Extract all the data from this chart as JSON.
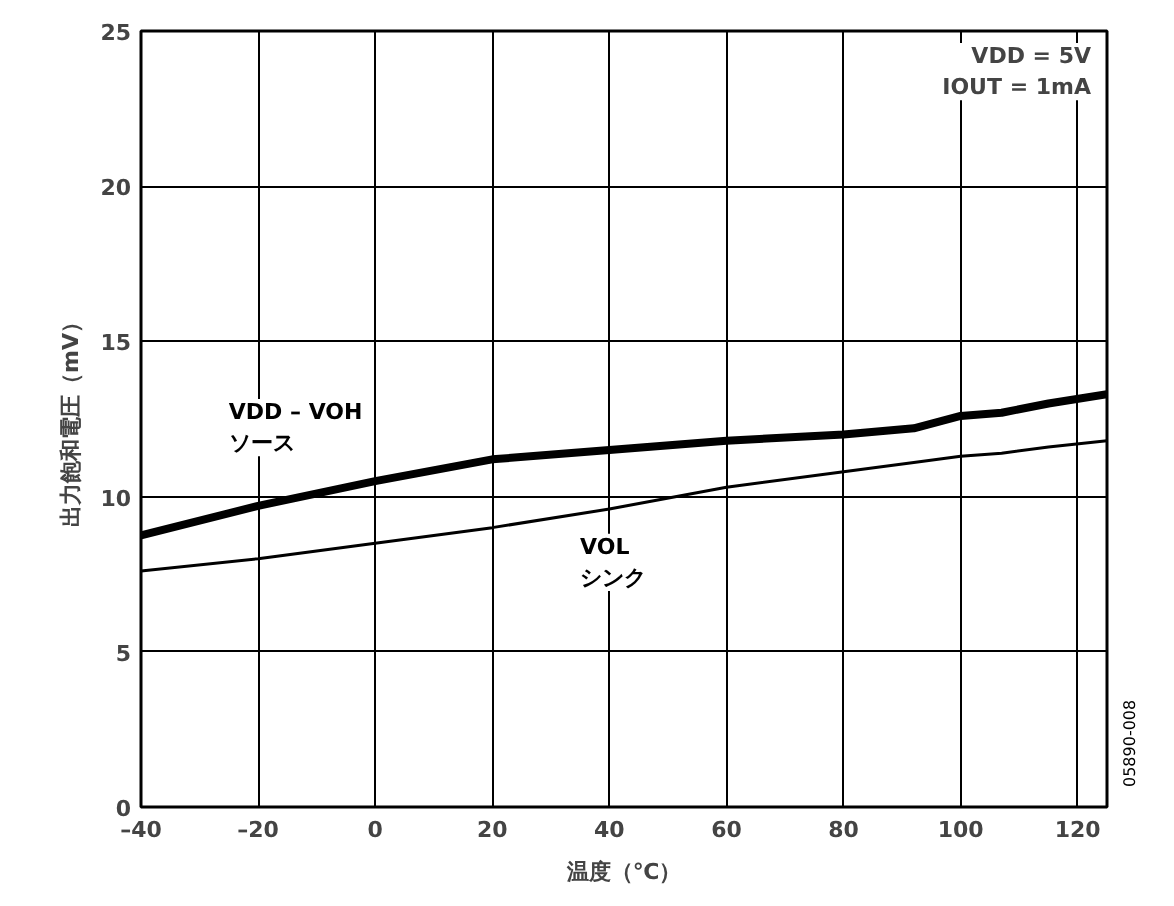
{
  "chart_data": {
    "type": "line",
    "xlabel": "温度（℃）",
    "ylabel": "出力飽和電圧（mV）",
    "x": [
      -40,
      -20,
      0,
      20,
      40,
      60,
      80,
      92,
      100,
      107,
      115,
      125
    ],
    "series": [
      {
        "name": "VDD – VOH\nソース",
        "color": "#000000",
        "values": [
          8.75,
          9.7,
          10.5,
          11.2,
          11.5,
          11.8,
          12.0,
          12.2,
          12.6,
          12.7,
          13.0,
          13.3
        ]
      },
      {
        "name": "VOL\nシンク",
        "color": "#000000",
        "values": [
          7.6,
          8.0,
          8.5,
          9.0,
          9.6,
          10.3,
          10.8,
          11.1,
          11.3,
          11.4,
          11.6,
          11.8
        ]
      }
    ],
    "xlim": [
      -40,
      125
    ],
    "xticks": [
      {
        "value": -40,
        "label": "–40"
      },
      {
        "value": -20,
        "label": "–20"
      },
      0,
      20,
      40,
      60,
      80,
      100,
      120
    ],
    "ylim": [
      0,
      25
    ],
    "yticks": [
      0,
      5,
      10,
      15,
      20,
      25
    ],
    "grid": true,
    "annotations": [
      "VDD = 5V\nIOUT = 1mA",
      "05890-008"
    ]
  }
}
